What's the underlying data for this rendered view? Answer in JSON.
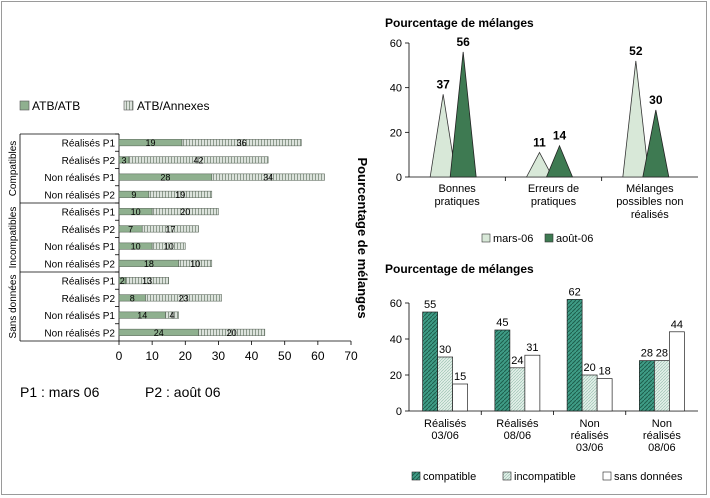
{
  "chart_data": [
    {
      "type": "bar",
      "orientation": "horizontal",
      "stacked": true,
      "title": "Pourcentage de mélanges",
      "legend_position": "top",
      "groups": [
        "Compatibles",
        "Incompatibles",
        "Sans données"
      ],
      "categories": [
        "Réalisés P1",
        "Réalisés P2",
        "Non réalisés P1",
        "Non réalisés P2",
        "Réalisés P1",
        "Réalisés P2",
        "Non réalisés P1",
        "Non réalisés P2",
        "Réalisés P1",
        "Réalisés P2",
        "Non réalisés P1",
        "Non réalisés P2"
      ],
      "series": [
        {
          "name": "ATB/ATB",
          "values": [
            19,
            3,
            28,
            9,
            10,
            7,
            10,
            18,
            2,
            8,
            14,
            24
          ]
        },
        {
          "name": "ATB/Annexes",
          "values": [
            36,
            42,
            34,
            19,
            20,
            17,
            10,
            10,
            13,
            23,
            4,
            20
          ]
        }
      ],
      "xlim": [
        0,
        70
      ],
      "xticks": [
        "0",
        "10",
        "20",
        "30",
        "40",
        "50",
        "60",
        "70"
      ],
      "note": "P1 : mars 06      P2 : août 06",
      "colors": {
        "ATB/ATB": "#8fb08f",
        "ATB/Annexes": "#d4dcd4"
      }
    },
    {
      "type": "area",
      "subtype": "triangle",
      "title": "Pourcentage de mélanges",
      "categories": [
        "Bonnes pratiques",
        "Erreurs de pratiques",
        "Mélanges possibles non réalisés"
      ],
      "series": [
        {
          "name": "mars-06",
          "values": [
            37,
            11,
            52
          ]
        },
        {
          "name": "août-06",
          "values": [
            56,
            14,
            30
          ]
        }
      ],
      "ylim": [
        0,
        60
      ],
      "yticks": [
        "0",
        "20",
        "40",
        "60"
      ],
      "legend_position": "bottom",
      "colors": {
        "mars-06": "#d8e8d8",
        "août-06": "#3e7a52"
      }
    },
    {
      "type": "bar",
      "title": "Pourcentage de mélanges",
      "categories": [
        "Réalisés 03/06",
        "Réalisés 08/06",
        "Non réalisés 03/06",
        "Non réalisés 08/06"
      ],
      "series": [
        {
          "name": "compatible",
          "values": [
            55,
            45,
            62,
            28
          ]
        },
        {
          "name": "incompatible",
          "values": [
            30,
            24,
            20,
            28
          ]
        },
        {
          "name": "sans données",
          "values": [
            15,
            31,
            18,
            44
          ]
        }
      ],
      "ylim": [
        0,
        60
      ],
      "yticks": [
        "0",
        "20",
        "40",
        "60"
      ],
      "legend_position": "bottom",
      "colors": {
        "compatible": "#3f9c86",
        "incompatible": "#c8e0d6",
        "sans données": "#ffffff"
      }
    }
  ]
}
